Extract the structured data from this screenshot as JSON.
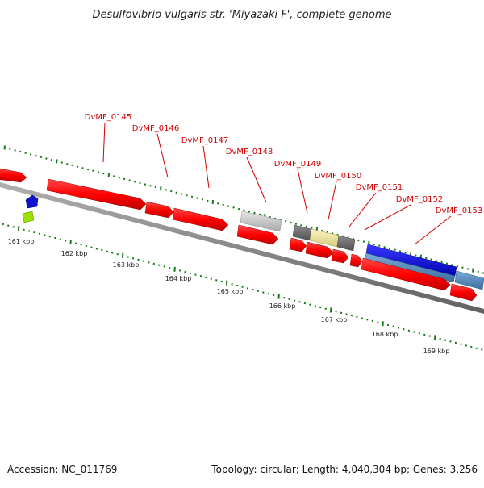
{
  "title": "Desulfovibrio vulgaris str. 'Miyazaki F', complete genome",
  "accession_text": "Accession: NC_011769",
  "summary_text": "Topology: circular; Length: 4,040,304 bp; Genes: 3,256",
  "colors": {
    "gene_red": "#ff0000",
    "gene_red_dark": "#b00000",
    "backbone": "#808080",
    "ruler": "#1a7a1a",
    "label": "#d40000",
    "gray_light": "#c8c8c8",
    "gray_dark": "#707070",
    "khaki": "#efe6a0",
    "blue": "#1010e8",
    "steelblue": "#5a8fc0",
    "lime": "#9ae000",
    "navy_marker": "#1010d0"
  },
  "ruler": {
    "labels": [
      "161 kbp",
      "162 kbp",
      "163 kbp",
      "164 kbp",
      "165 kbp",
      "166 kbp",
      "167 kbp",
      "168 kbp",
      "169 kbp"
    ]
  },
  "loci": [
    {
      "label": "DvMF_0145"
    },
    {
      "label": "DvMF_0146"
    },
    {
      "label": "DvMF_0147"
    },
    {
      "label": "DvMF_0148"
    },
    {
      "label": "DvMF_0149"
    },
    {
      "label": "DvMF_0150"
    },
    {
      "label": "DvMF_0151"
    },
    {
      "label": "DvMF_0152"
    },
    {
      "label": "DvMF_0153"
    }
  ]
}
